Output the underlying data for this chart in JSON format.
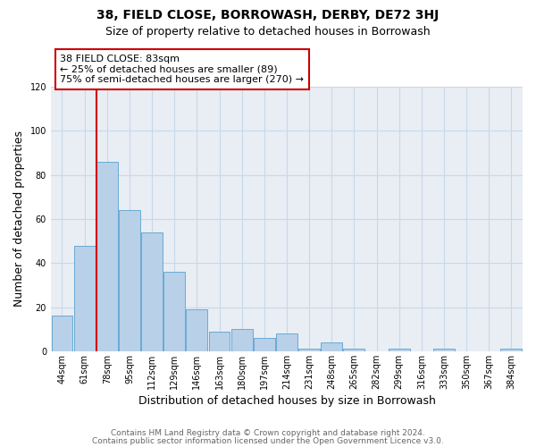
{
  "title": "38, FIELD CLOSE, BORROWASH, DERBY, DE72 3HJ",
  "subtitle": "Size of property relative to detached houses in Borrowash",
  "xlabel": "Distribution of detached houses by size in Borrowash",
  "ylabel": "Number of detached properties",
  "bar_labels": [
    "44sqm",
    "61sqm",
    "78sqm",
    "95sqm",
    "112sqm",
    "129sqm",
    "146sqm",
    "163sqm",
    "180sqm",
    "197sqm",
    "214sqm",
    "231sqm",
    "248sqm",
    "265sqm",
    "282sqm",
    "299sqm",
    "316sqm",
    "333sqm",
    "350sqm",
    "367sqm",
    "384sqm"
  ],
  "bar_values": [
    16,
    48,
    86,
    64,
    54,
    36,
    19,
    9,
    10,
    6,
    8,
    1,
    4,
    1,
    0,
    1,
    0,
    1,
    0,
    0,
    1
  ],
  "bar_color": "#b8d0e8",
  "bar_edgecolor": "#6aaad4",
  "ylim": [
    0,
    120
  ],
  "yticks": [
    0,
    20,
    40,
    60,
    80,
    100,
    120
  ],
  "red_line_bar_index": 2,
  "annotation_title": "38 FIELD CLOSE: 83sqm",
  "annotation_line1": "← 25% of detached houses are smaller (89)",
  "annotation_line2": "75% of semi-detached houses are larger (270) →",
  "annotation_box_facecolor": "#ffffff",
  "annotation_box_edgecolor": "#cc0000",
  "red_line_color": "#cc0000",
  "grid_color": "#c8d8ea",
  "plot_bg_color": "#e8eef4",
  "fig_bg_color": "#ffffff",
  "footer1": "Contains HM Land Registry data © Crown copyright and database right 2024.",
  "footer2": "Contains public sector information licensed under the Open Government Licence v3.0.",
  "title_fontsize": 10,
  "subtitle_fontsize": 9,
  "axis_label_fontsize": 9,
  "tick_fontsize": 7,
  "footer_fontsize": 6.5
}
